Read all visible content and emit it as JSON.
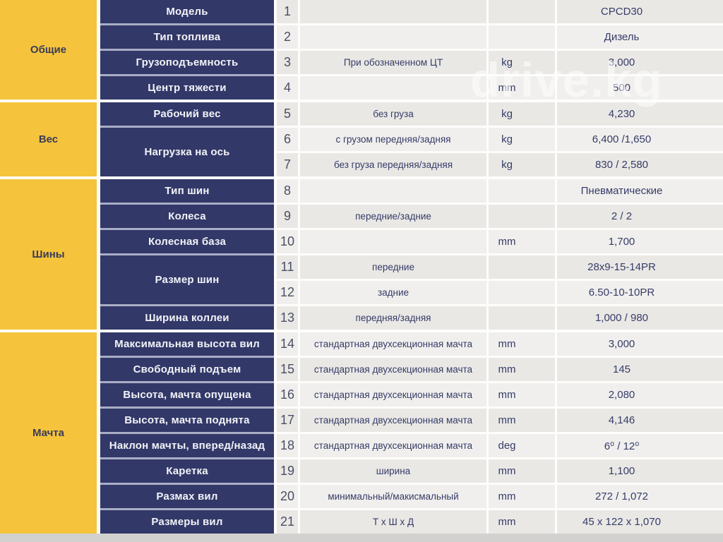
{
  "title": "CPCD30 forklift specification table",
  "watermark": "drive.kg",
  "colors": {
    "accent_yellow": "#F5C43C",
    "cell_blue": "#323868",
    "separator_blue": "#A9AEC6",
    "row_light": "#F0EFED",
    "row_dark": "#E9E8E5",
    "bottom_strip": "#D2D1CF"
  },
  "sections": [
    {
      "category": "Общие",
      "params": [
        {
          "label": "Модель",
          "rows": 1
        },
        {
          "label": "Тип топлива",
          "rows": 1
        },
        {
          "label": "Грузоподъемность",
          "rows": 1
        },
        {
          "label": "Центр тяжести",
          "rows": 1
        }
      ],
      "rows": [
        {
          "num": "1",
          "desc": "",
          "unit": "",
          "value": "CPCD30"
        },
        {
          "num": "2",
          "desc": "",
          "unit": "",
          "value": "Дизель"
        },
        {
          "num": "3",
          "desc": "При обозначенном ЦТ",
          "unit": "kg",
          "value": "3,000"
        },
        {
          "num": "4",
          "desc": "",
          "unit": "mm",
          "value": "500"
        }
      ]
    },
    {
      "category": "Вес",
      "params": [
        {
          "label": "Рабочий вес",
          "rows": 1
        },
        {
          "label": "Нагрузка на ось",
          "rows": 2
        }
      ],
      "rows": [
        {
          "num": "5",
          "desc": "без груза",
          "unit": "kg",
          "value": "4,230"
        },
        {
          "num": "6",
          "desc": "с грузом передняя/задняя",
          "unit": "kg",
          "value": "6,400 /1,650"
        },
        {
          "num": "7",
          "desc": "без груза передняя/задняя",
          "unit": "kg",
          "value": "830 / 2,580"
        }
      ]
    },
    {
      "category": "Шины",
      "params": [
        {
          "label": "Тип шин",
          "rows": 1
        },
        {
          "label": "Колеса",
          "rows": 1
        },
        {
          "label": "Колесная база",
          "rows": 1
        },
        {
          "label": "Размер шин",
          "rows": 2
        },
        {
          "label": "Ширина коллеи",
          "rows": 1
        }
      ],
      "rows": [
        {
          "num": "8",
          "desc": "",
          "unit": "",
          "value": "Пневматические"
        },
        {
          "num": "9",
          "desc": "передние/задние",
          "unit": "",
          "value": "2 / 2"
        },
        {
          "num": "10",
          "desc": "",
          "unit": "mm",
          "value": "1,700"
        },
        {
          "num": "11",
          "desc": "передние",
          "unit": "",
          "value": "28x9-15-14PR"
        },
        {
          "num": "12",
          "desc": "задние",
          "unit": "",
          "value": "6.50-10-10PR"
        },
        {
          "num": "13",
          "desc": "передняя/задняя",
          "unit": "",
          "value": "1,000 / 980"
        }
      ]
    },
    {
      "category": "Мачта",
      "params": [
        {
          "label": "Максимальная высота вил",
          "rows": 1
        },
        {
          "label": "Свободный подъем",
          "rows": 1
        },
        {
          "label": "Высота, мачта опущена",
          "rows": 1
        },
        {
          "label": "Высота, мачта поднята",
          "rows": 1
        },
        {
          "label": "Наклон мачты, вперед/назад",
          "rows": 1
        },
        {
          "label": "Каретка",
          "rows": 1
        },
        {
          "label": "Размах вил",
          "rows": 1
        },
        {
          "label": "Размеры вил",
          "rows": 1
        }
      ],
      "rows": [
        {
          "num": "14",
          "desc": "стандартная двухсекционная мачта",
          "unit": "mm",
          "value": "3,000"
        },
        {
          "num": "15",
          "desc": "стандартная двухсекционная мачта",
          "unit": "mm",
          "value": "145"
        },
        {
          "num": "16",
          "desc": "стандартная двухсекционная мачта",
          "unit": "mm",
          "value": "2,080"
        },
        {
          "num": "17",
          "desc": "стандартная двухсекционная мачта",
          "unit": "mm",
          "value": "4,146"
        },
        {
          "num": "18",
          "desc": "стандартная двухсекционная мачта",
          "unit": "deg",
          "value": "6⁰ / 12⁰"
        },
        {
          "num": "19",
          "desc": "ширина",
          "unit": "mm",
          "value": "1,100"
        },
        {
          "num": "20",
          "desc": "минимальный/макисмальный",
          "unit": "mm",
          "value": "272 / 1,072"
        },
        {
          "num": "21",
          "desc": "Т х Ш х Д",
          "unit": "mm",
          "value": "45 x 122 x 1,070"
        }
      ]
    }
  ]
}
